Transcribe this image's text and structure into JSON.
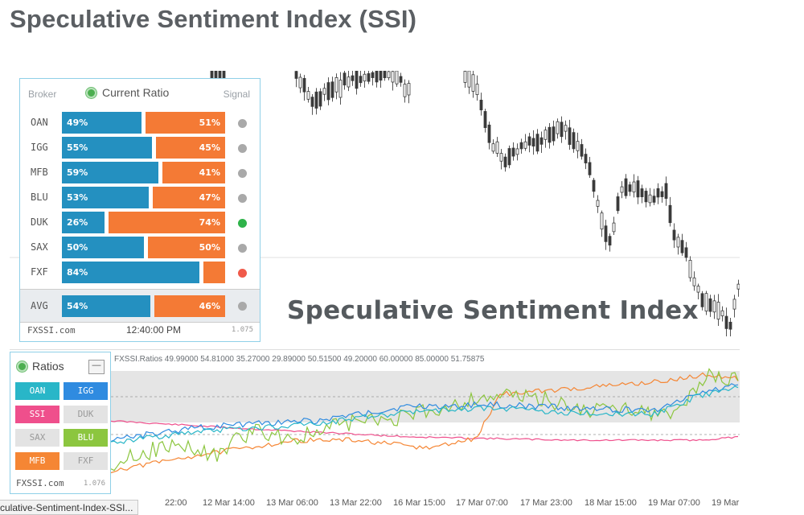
{
  "page_title": "Speculative Sentiment Index (SSI)",
  "watermark": "Speculative Sentiment Index",
  "ratio_panel": {
    "header_broker": "Broker",
    "header_title": "Current Ratio",
    "header_signal": "Signal",
    "rows": [
      {
        "broker": "OAN",
        "long": "49%",
        "short": "51%",
        "long_fraction": 0.49,
        "signal_color": "#a9a9a9"
      },
      {
        "broker": "IGG",
        "long": "55%",
        "short": "45%",
        "long_fraction": 0.55,
        "signal_color": "#a9a9a9"
      },
      {
        "broker": "MFB",
        "long": "59%",
        "short": "41%",
        "long_fraction": 0.59,
        "signal_color": "#a9a9a9"
      },
      {
        "broker": "BLU",
        "long": "53%",
        "short": "47%",
        "long_fraction": 0.53,
        "signal_color": "#a9a9a9"
      },
      {
        "broker": "DUK",
        "long": "26%",
        "short": "74%",
        "long_fraction": 0.26,
        "signal_color": "#2fb34a"
      },
      {
        "broker": "SAX",
        "long": "50%",
        "short": "50%",
        "long_fraction": 0.5,
        "signal_color": "#a9a9a9"
      },
      {
        "broker": "FXF",
        "long": "84%",
        "short": "",
        "long_fraction": 0.84,
        "signal_color": "#f05a4a"
      }
    ],
    "avg": {
      "broker": "AVG",
      "long": "54%",
      "short": "46%",
      "long_fraction": 0.54,
      "signal_color": "#a9a9a9"
    },
    "footer_brand": "FXSSI.com",
    "footer_time": "12:40:00 PM",
    "footer_version": "1.075"
  },
  "ratios_box": {
    "title": "Ratios",
    "minimize": "—",
    "buttons": [
      {
        "label": "OAN",
        "bg": "#29b6c8",
        "color": "#ffffff"
      },
      {
        "label": "IGG",
        "bg": "#2f8be0",
        "color": "#ffffff"
      },
      {
        "label": "SSI",
        "bg": "#ef4f8c",
        "color": "#ffffff"
      },
      {
        "label": "DUK",
        "bg": "#e3e3e3",
        "color": "#9a9a9a"
      },
      {
        "label": "SAX",
        "bg": "#e3e3e3",
        "color": "#9a9a9a"
      },
      {
        "label": "BLU",
        "bg": "#8cc63f",
        "color": "#ffffff"
      },
      {
        "label": "MFB",
        "bg": "#f58634",
        "color": "#ffffff"
      },
      {
        "label": "FXF",
        "bg": "#e3e3e3",
        "color": "#9a9a9a"
      }
    ],
    "footer_brand": "FXSSI.com",
    "footer_version": "1.076"
  },
  "indicator_label": "FXSSI.Ratios 49.99000 54.81000 35.27000 29.89000 50.51500 49.20000 60.00000 85.00000 51.75875",
  "time_axis": [
    "22:00",
    "12 Mar 14:00",
    "13 Mar 06:00",
    "13 Mar 22:00",
    "16 Mar 15:00",
    "17 Mar 07:00",
    "17 Mar 23:00",
    "18 Mar 15:00",
    "19 Mar 07:00",
    "19 Mar"
  ],
  "status_tooltip": "culative-Sentiment-Index-SSI...",
  "colors": {
    "long_bar": "#2490c0",
    "short_bar": "#f47a35",
    "panel_border": "#8fd0e8"
  }
}
